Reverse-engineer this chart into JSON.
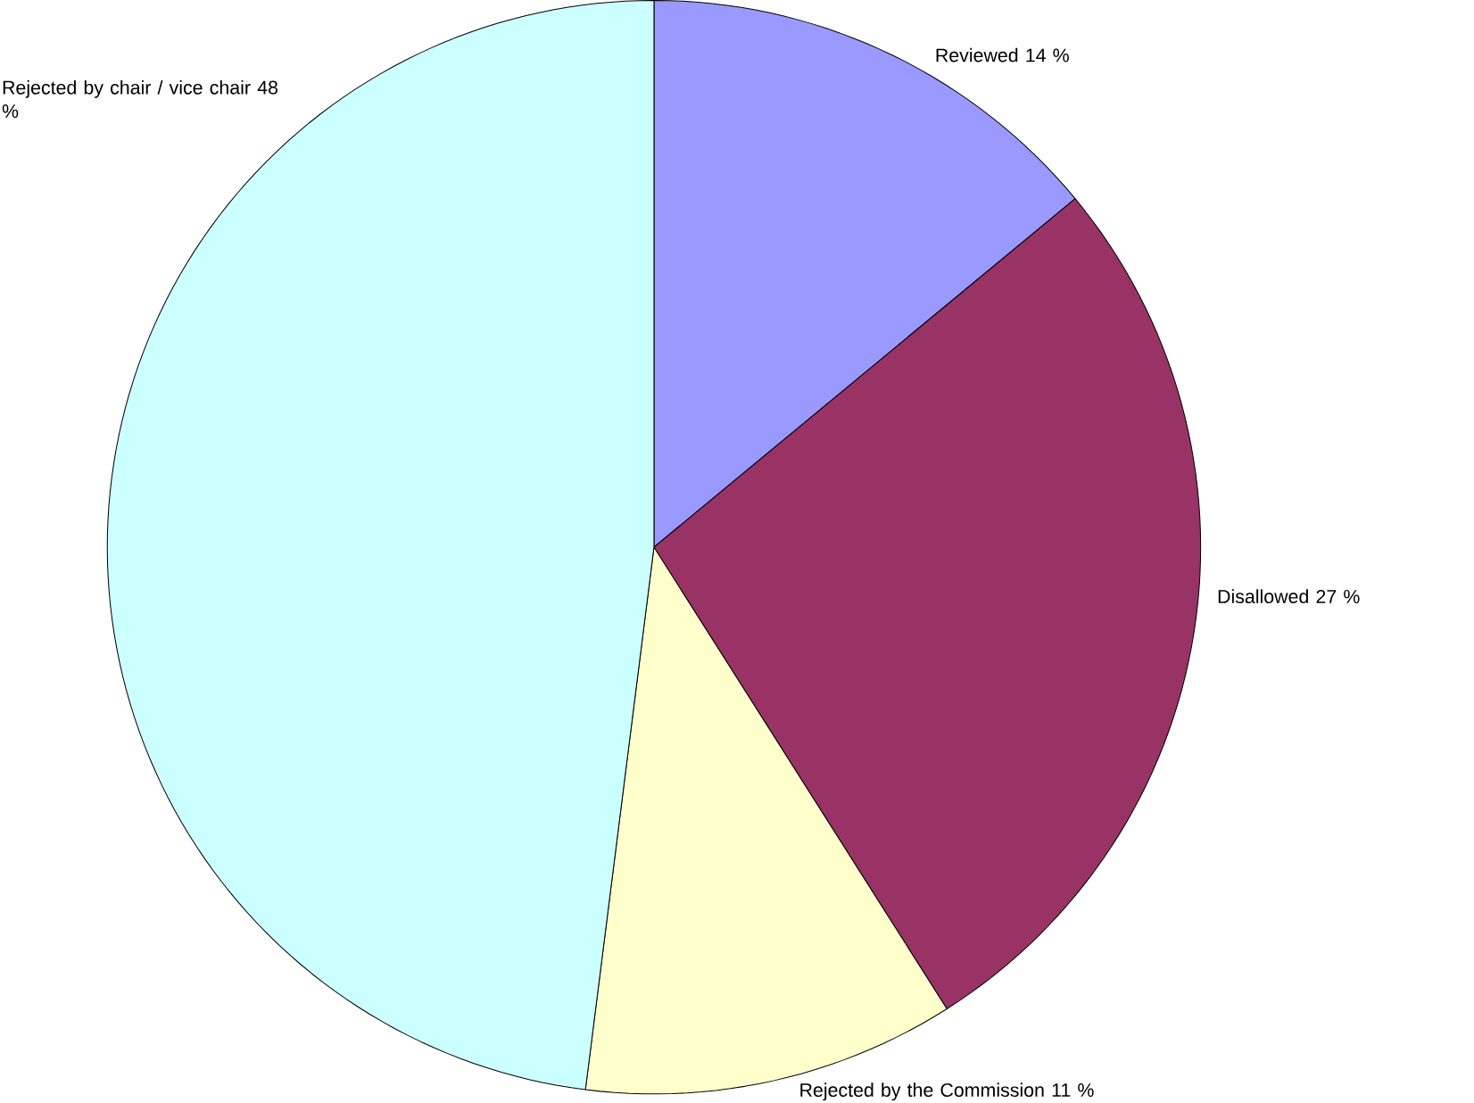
{
  "chart_data": {
    "type": "pie",
    "categories": [
      "Reviewed",
      "Disallowed",
      "Rejected by the Commission",
      "Rejected by chair / vice chair"
    ],
    "values": [
      14,
      27,
      11,
      48
    ],
    "value_labels": [
      "14 %",
      "27 %",
      "11 %",
      "48 %"
    ],
    "colors": [
      "#9999ff",
      "#993366",
      "#ffffcc",
      "#ccffff"
    ]
  }
}
